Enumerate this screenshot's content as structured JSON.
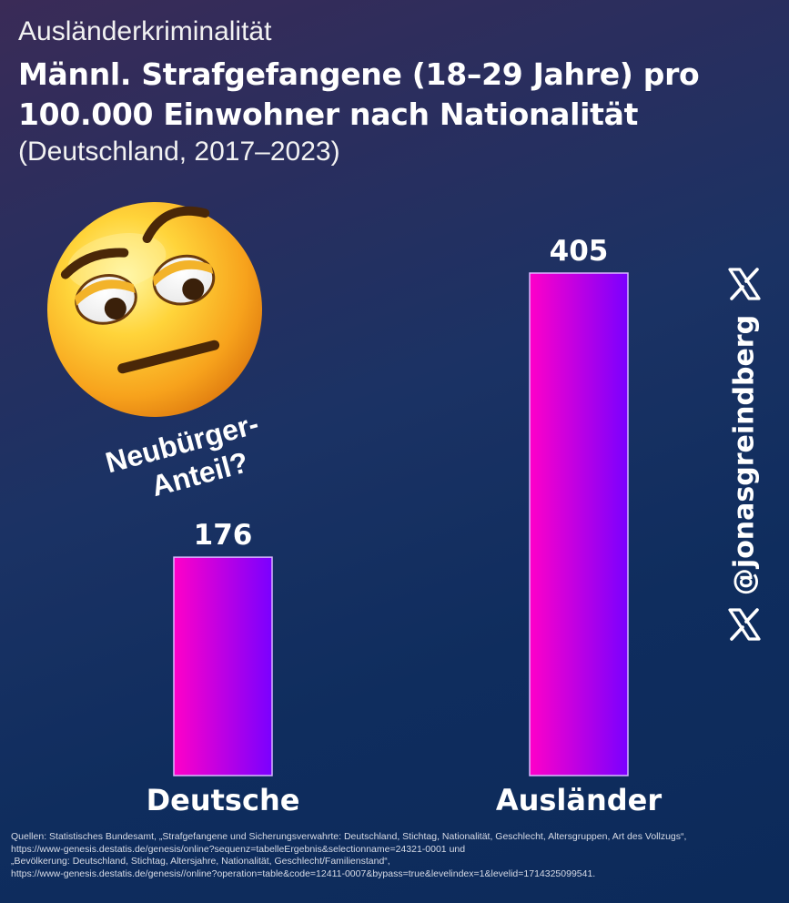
{
  "header": {
    "kicker": "Ausländerkriminalität",
    "title": "Männl. Strafgefangene (18–29 Jahre) pro 100.000 Einwohner nach Nationalität",
    "subtitle": "(Deutschland, 2017–2023)"
  },
  "annotation": {
    "emoji": "face-with-raised-eyebrow",
    "line1": "Neubürger-",
    "line2": "Anteil?"
  },
  "branding": {
    "handle": "@jonasgreindberg",
    "icon": "x-logo-icon"
  },
  "chart_data": {
    "type": "bar",
    "categories": [
      "Deutsche",
      "Ausländer"
    ],
    "values": [
      176,
      405
    ],
    "ylim": [
      0,
      405
    ],
    "grid": false,
    "bar_gradient": [
      "#ff00c8",
      "#7a00ff"
    ],
    "bar_border": "#d9b8ff"
  },
  "footer": {
    "sources": [
      "Quellen: Statistisches Bundesamt, „Strafgefangene und Sicherungsverwahrte: Deutschland, Stichtag, Nationalität, Geschlecht, Altersgruppen, Art des Vollzugs“,",
      "https://www-genesis.destatis.de/genesis/online?sequenz=tabelleErgebnis&selectionname=24321-0001 und",
      "„Bevölkerung: Deutschland, Stichtag, Altersjahre, Nationalität, Geschlecht/Familienstand“,",
      "https://www-genesis.destatis.de/genesis//online?operation=table&code=12411-0007&bypass=true&levelindex=1&levelid=1714325099541."
    ]
  }
}
